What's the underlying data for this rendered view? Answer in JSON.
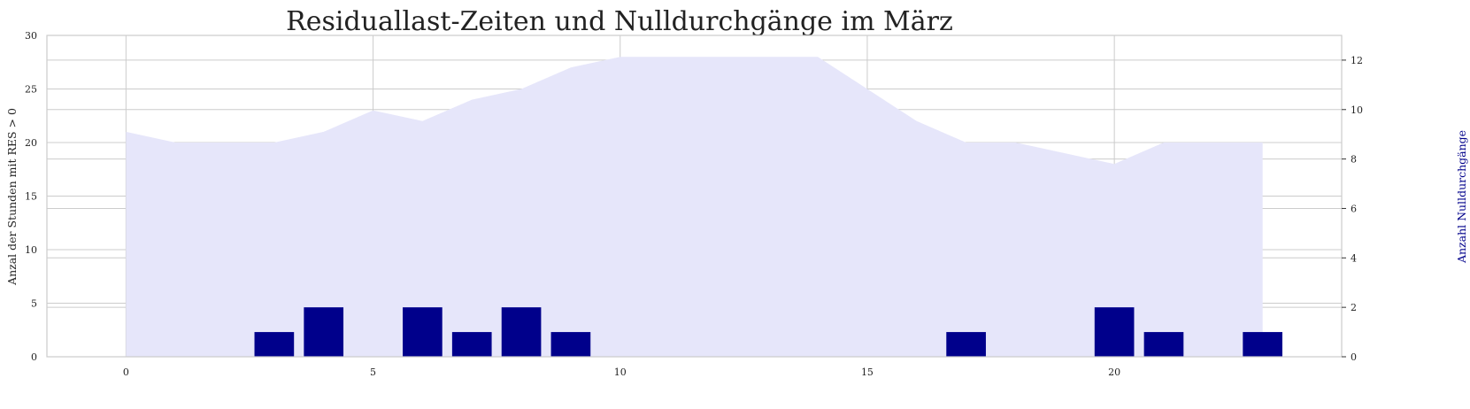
{
  "chart_data": {
    "type": "bar+area",
    "title": "Residuallast-Zeiten und Nulldurchgänge im März",
    "xlabel": "",
    "ylabel_left": "Anzal der Stunden mit RES > 0",
    "ylabel_right": "Anzahl Nulldurchgänge",
    "x": [
      0,
      1,
      2,
      3,
      4,
      5,
      6,
      7,
      8,
      9,
      10,
      11,
      12,
      13,
      14,
      15,
      16,
      17,
      18,
      19,
      20,
      21,
      22,
      23
    ],
    "xlim": [
      -1.6,
      24.6
    ],
    "ylim_left": [
      0,
      30
    ],
    "ylim_right": [
      0,
      13
    ],
    "xticks": [
      "0",
      "5",
      "10",
      "15",
      "20"
    ],
    "yticks_left": [
      "0",
      "5",
      "10",
      "15",
      "20",
      "25",
      "30"
    ],
    "yticks_right": [
      "0",
      "2",
      "4",
      "6",
      "8",
      "10",
      "12"
    ],
    "grid": true,
    "area_series": {
      "axis": "left",
      "color": "#e6e6fa",
      "values": [
        21,
        20,
        20,
        20,
        21,
        23,
        22,
        24,
        25,
        27,
        28,
        28,
        28,
        28,
        28,
        25,
        22,
        20,
        20,
        19,
        18,
        20,
        20,
        20
      ]
    },
    "bar_series": {
      "axis": "right",
      "color": "#00008b",
      "values": [
        0,
        0,
        0,
        1,
        2,
        0,
        2,
        1,
        2,
        1,
        0,
        0,
        0,
        0,
        0,
        0,
        0,
        1,
        0,
        0,
        2,
        1,
        0,
        1
      ]
    }
  }
}
